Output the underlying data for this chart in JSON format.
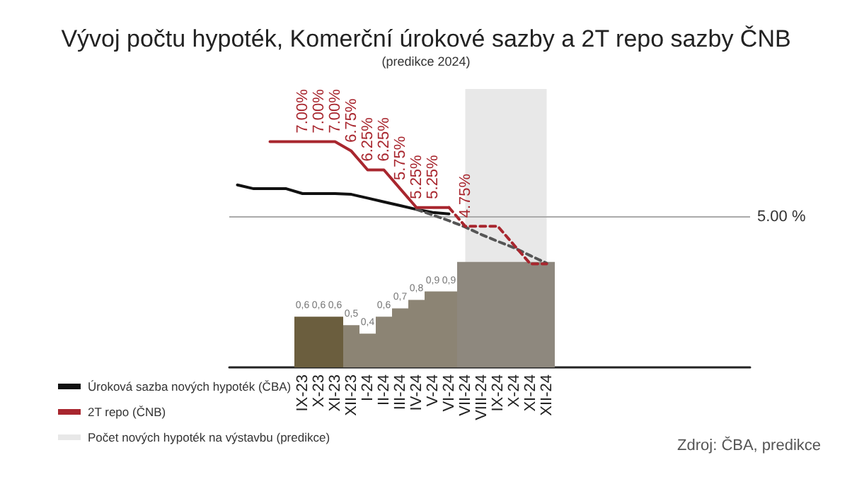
{
  "chart_data": {
    "type": "line",
    "title": "Vývoj počtu hypoték, Komerční úrokové sazby a 2T repo sazby ČNB",
    "subtitle": "(predikce 2024)",
    "categories": [
      null,
      null,
      null,
      null,
      "IX-23",
      "X-23",
      "XI-23",
      "XII-23",
      "I-24",
      "II-24",
      "III-24",
      "IV-24",
      "V-24",
      "VI-24",
      "VII-24",
      "VIII-24",
      "IX-24",
      "X-24",
      "XI-24",
      "XII-24",
      null,
      null,
      null,
      null,
      null,
      null,
      null,
      null,
      null,
      null,
      null,
      null
    ],
    "ylim": [
      1,
      8.4
    ],
    "y2lim": [
      0,
      3.3
    ],
    "tick_labels": "x",
    "grid": false,
    "legend": "bottom left",
    "marker": "none",
    "series": [
      {
        "type": "bar",
        "axis": "y2",
        "colors": [
          "#8c8474",
          "#8c8474",
          "#8c8474",
          "#8c8474",
          "#6b5e3e",
          "#6b5e3e",
          "#6b5e3e",
          "#8c8474",
          "#8c8474",
          "#8c8474",
          "#8c8474",
          "#8c8474",
          "#8c8474",
          "#8c8474",
          "#8e887e",
          "#8e887e",
          "#8e887e",
          "#8e887e",
          "#8e887e",
          "#8e887e",
          "#8c8474",
          "#8c8474",
          "#8c8474",
          "#8c8474",
          "#8c8474",
          "#8c8474",
          "#8c8474",
          "#8c8474",
          "#8c8474",
          "#8c8474",
          "#8c8474",
          "#8c8474"
        ],
        "values": [
          null,
          null,
          null,
          null,
          0.6,
          0.6,
          0.6,
          0.5,
          0.4,
          0.6,
          0.7,
          0.8,
          0.9,
          0.9,
          1.25,
          1.25,
          1.25,
          1.25,
          1.25,
          1.25,
          null,
          null,
          null,
          null,
          null,
          null,
          null,
          null,
          null,
          null,
          null,
          null
        ],
        "value_labels": [
          null,
          null,
          null,
          null,
          "0,6",
          "0,6",
          "0,6",
          "0,5",
          "0,4",
          "0,6",
          "0,7",
          "0,8",
          "0,9",
          "0,9",
          null,
          null,
          null,
          null,
          null,
          null,
          null,
          null,
          null,
          null,
          null,
          null,
          null,
          null,
          null,
          null,
          null,
          null
        ]
      },
      {
        "name": "Úroková sazba nových hypoték (ČBA)",
        "color": "#111111",
        "line_style": "solid",
        "values": [
          5.85,
          5.75,
          5.75,
          5.75,
          5.62,
          5.62,
          5.62,
          5.6,
          5.5,
          5.4,
          5.3,
          5.2,
          5.12,
          5.08,
          null,
          null,
          null,
          null,
          null,
          null,
          null,
          null,
          null,
          null,
          null,
          null,
          null,
          null,
          null,
          null,
          null,
          null
        ]
      },
      {
        "color": "#555555",
        "line_style": "dashed",
        "values": [
          null,
          null,
          null,
          null,
          null,
          null,
          null,
          null,
          null,
          null,
          null,
          5.2,
          5.05,
          4.9,
          4.73,
          4.53,
          4.35,
          4.18,
          3.97,
          3.77,
          null,
          null,
          null,
          null,
          null,
          null,
          null,
          null,
          null,
          null,
          null,
          null
        ]
      },
      {
        "name": "2T repo (ČNB)",
        "color": "#a8262e",
        "line_style": "solid",
        "values": [
          null,
          null,
          7,
          7,
          7,
          7,
          7,
          6.75,
          6.25,
          6.25,
          5.75,
          5.25,
          5.25,
          5.25,
          null,
          null,
          null,
          null,
          null,
          null,
          null,
          null,
          null,
          null,
          null,
          null,
          null,
          null,
          null,
          null,
          null,
          null
        ],
        "value_labels": [
          null,
          null,
          null,
          null,
          "7.00%",
          "7.00%",
          "7.00%",
          "6.75%",
          "6.25%",
          "6.25%",
          "5.75%",
          "5.25%",
          "5.25%",
          null,
          null,
          null,
          null,
          null,
          null,
          null,
          null,
          null,
          null,
          null,
          null,
          null,
          null,
          null,
          null,
          null,
          null,
          null
        ]
      },
      {
        "color": "#a8262e",
        "line_style": "dashed",
        "values": [
          null,
          null,
          null,
          null,
          null,
          null,
          null,
          null,
          null,
          null,
          null,
          null,
          null,
          5.25,
          4.75,
          4.75,
          4.75,
          4.25,
          3.75,
          3.75,
          null,
          null,
          null,
          null,
          null,
          null,
          null,
          null,
          null,
          null,
          null,
          null
        ],
        "value_labels": [
          null,
          null,
          null,
          null,
          null,
          null,
          null,
          null,
          null,
          null,
          null,
          null,
          null,
          null,
          "4.75%",
          null,
          null,
          null,
          null,
          null,
          null,
          null,
          null,
          null,
          null,
          null,
          null,
          null,
          null,
          null,
          null,
          null
        ]
      }
    ],
    "bands": [
      {
        "axis": "x",
        "from": "VII-24",
        "to": "XII-24",
        "label": "Počet nových hypoték na výstavbu (predikce)",
        "color": "#e8e8e8"
      }
    ],
    "ref_lines": [
      {
        "axis": "y",
        "value": 5,
        "label": "5.00 %",
        "color": "#aaaaaa"
      }
    ],
    "annotations": [
      "Zdroj: ČBA, predikce"
    ]
  }
}
